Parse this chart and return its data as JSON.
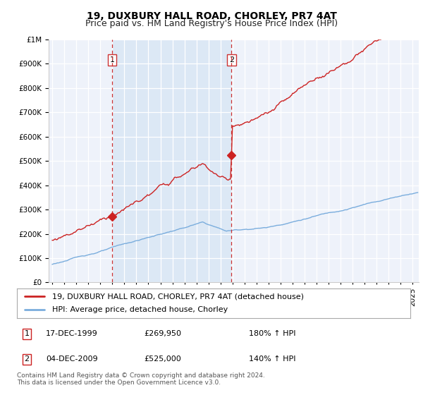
{
  "title": "19, DUXBURY HALL ROAD, CHORLEY, PR7 4AT",
  "subtitle": "Price paid vs. HM Land Registry's House Price Index (HPI)",
  "ylabel_values": [
    0,
    100000,
    200000,
    300000,
    400000,
    500000,
    600000,
    700000,
    800000,
    900000,
    1000000
  ],
  "ylim": [
    0,
    1000000
  ],
  "xlim_start": 1994.7,
  "xlim_end": 2025.5,
  "hpi_color": "#7aaddd",
  "price_color": "#cc2222",
  "vline_color": "#cc3333",
  "background_color": "#ffffff",
  "plot_bg": "#eef2fa",
  "shade_color": "#dce8f5",
  "sale1_year": 1999.97,
  "sale1_price": 269950,
  "sale1_label": "1",
  "sale2_year": 2009.92,
  "sale2_price": 525000,
  "sale2_label": "2",
  "legend_address": "19, DUXBURY HALL ROAD, CHORLEY, PR7 4AT (detached house)",
  "legend_hpi": "HPI: Average price, detached house, Chorley",
  "table_row1": [
    "1",
    "17-DEC-1999",
    "£269,950",
    "180% ↑ HPI"
  ],
  "table_row2": [
    "2",
    "04-DEC-2009",
    "£525,000",
    "140% ↑ HPI"
  ],
  "footer": "Contains HM Land Registry data © Crown copyright and database right 2024.\nThis data is licensed under the Open Government Licence v3.0.",
  "title_fontsize": 10,
  "subtitle_fontsize": 9,
  "tick_fontsize": 7.5,
  "legend_fontsize": 8,
  "footer_fontsize": 6.5
}
